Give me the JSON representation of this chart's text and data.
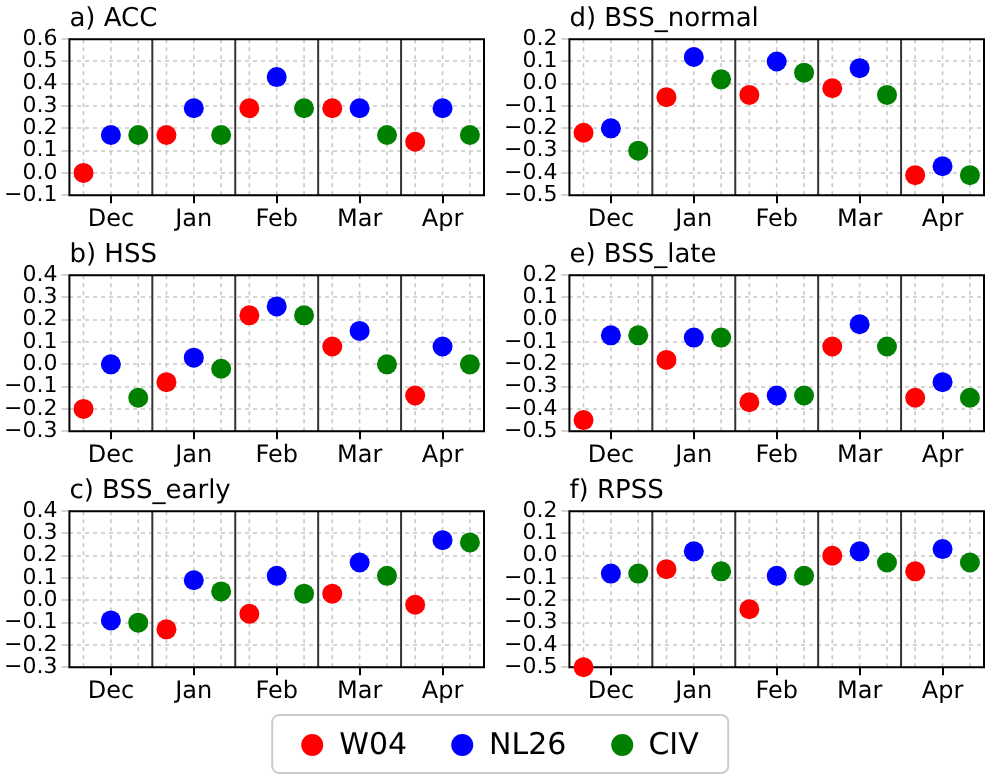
{
  "chart_data": [
    {
      "type": "scatter",
      "title": "a) ACC",
      "categories": [
        "Dec",
        "Jan",
        "Feb",
        "Mar",
        "Apr"
      ],
      "ylim": [
        -0.1,
        0.6
      ],
      "yticks": [
        {
          "value": -0.1,
          "label": "−0.1"
        },
        {
          "value": 0,
          "label": "0.0"
        },
        {
          "value": 0.1,
          "label": "0.1"
        },
        {
          "value": 0.2,
          "label": "0.2"
        },
        {
          "value": 0.3,
          "label": "0.3"
        },
        {
          "value": 0.4,
          "label": "0.4"
        },
        {
          "value": 0.5,
          "label": "0.5"
        },
        {
          "value": 0.6,
          "label": "0.6"
        }
      ],
      "grid": true,
      "marker": "circle",
      "series": [
        {
          "color": "#ff0000",
          "values": [
            0,
            0.17,
            0.29,
            0.29,
            0.14
          ]
        },
        {
          "color": "#0000ff",
          "values": [
            0.17,
            0.29,
            0.43,
            0.29,
            0.29
          ]
        },
        {
          "color": "#008000",
          "values": [
            0.17,
            0.17,
            0.29,
            0.17,
            0.17
          ]
        }
      ]
    },
    {
      "type": "scatter",
      "title": "d) BSS_normal",
      "categories": [
        "Dec",
        "Jan",
        "Feb",
        "Mar",
        "Apr"
      ],
      "ylim": [
        -0.5,
        0.2
      ],
      "yticks": [
        {
          "value": -0.5,
          "label": "−0.5"
        },
        {
          "value": -0.4,
          "label": "−0.4"
        },
        {
          "value": -0.3,
          "label": "−0.3"
        },
        {
          "value": -0.2,
          "label": "−0.2"
        },
        {
          "value": -0.1,
          "label": "−0.1"
        },
        {
          "value": 0,
          "label": "0.0"
        },
        {
          "value": 0.1,
          "label": "0.1"
        },
        {
          "value": 0.2,
          "label": "0.2"
        }
      ],
      "grid": true,
      "marker": "circle",
      "series": [
        {
          "color": "#ff0000",
          "values": [
            -0.22,
            -0.06,
            -0.05,
            -0.02,
            -0.41
          ]
        },
        {
          "color": "#0000ff",
          "values": [
            -0.2,
            0.12,
            0.1,
            0.07,
            -0.37
          ]
        },
        {
          "color": "#008000",
          "values": [
            -0.3,
            0.02,
            0.05,
            -0.05,
            -0.41
          ]
        }
      ]
    },
    {
      "type": "scatter",
      "title": "b) HSS",
      "categories": [
        "Dec",
        "Jan",
        "Feb",
        "Mar",
        "Apr"
      ],
      "ylim": [
        -0.3,
        0.4
      ],
      "yticks": [
        {
          "value": -0.3,
          "label": "−0.3"
        },
        {
          "value": -0.2,
          "label": "−0.2"
        },
        {
          "value": -0.1,
          "label": "−0.1"
        },
        {
          "value": 0,
          "label": "0.0"
        },
        {
          "value": 0.1,
          "label": "0.1"
        },
        {
          "value": 0.2,
          "label": "0.2"
        },
        {
          "value": 0.3,
          "label": "0.3"
        },
        {
          "value": 0.4,
          "label": "0.4"
        }
      ],
      "grid": true,
      "marker": "circle",
      "series": [
        {
          "color": "#ff0000",
          "values": [
            -0.2,
            -0.08,
            0.22,
            0.08,
            -0.14
          ]
        },
        {
          "color": "#0000ff",
          "values": [
            0,
            0.03,
            0.26,
            0.15,
            0.08
          ]
        },
        {
          "color": "#008000",
          "values": [
            -0.15,
            -0.02,
            0.22,
            0,
            0
          ]
        }
      ]
    },
    {
      "type": "scatter",
      "title": "e) BSS_late",
      "categories": [
        "Dec",
        "Jan",
        "Feb",
        "Mar",
        "Apr"
      ],
      "ylim": [
        -0.5,
        0.2
      ],
      "yticks": [
        {
          "value": -0.5,
          "label": "−0.5"
        },
        {
          "value": -0.4,
          "label": "−0.4"
        },
        {
          "value": -0.3,
          "label": "−0.3"
        },
        {
          "value": -0.2,
          "label": "−0.2"
        },
        {
          "value": -0.1,
          "label": "−0.1"
        },
        {
          "value": 0,
          "label": "0.0"
        },
        {
          "value": 0.1,
          "label": "0.1"
        },
        {
          "value": 0.2,
          "label": "0.2"
        }
      ],
      "grid": true,
      "marker": "circle",
      "series": [
        {
          "color": "#ff0000",
          "values": [
            -0.45,
            -0.18,
            -0.37,
            -0.12,
            -0.35
          ]
        },
        {
          "color": "#0000ff",
          "values": [
            -0.07,
            -0.08,
            -0.34,
            -0.02,
            -0.28
          ]
        },
        {
          "color": "#008000",
          "values": [
            -0.07,
            -0.08,
            -0.34,
            -0.12,
            -0.35
          ]
        }
      ]
    },
    {
      "type": "scatter",
      "title": "c) BSS_early",
      "categories": [
        "Dec",
        "Jan",
        "Feb",
        "Mar",
        "Apr"
      ],
      "ylim": [
        -0.3,
        0.4
      ],
      "yticks": [
        {
          "value": -0.3,
          "label": "−0.3"
        },
        {
          "value": -0.2,
          "label": "−0.2"
        },
        {
          "value": -0.1,
          "label": "−0.1"
        },
        {
          "value": 0,
          "label": "0.0"
        },
        {
          "value": 0.1,
          "label": "0.1"
        },
        {
          "value": 0.2,
          "label": "0.2"
        },
        {
          "value": 0.3,
          "label": "0.3"
        },
        {
          "value": 0.4,
          "label": "0.4"
        }
      ],
      "grid": true,
      "marker": "circle",
      "series": [
        {
          "color": "#ff0000",
          "values": [
            null,
            -0.13,
            -0.06,
            0.03,
            -0.02
          ]
        },
        {
          "color": "#0000ff",
          "values": [
            -0.09,
            0.09,
            0.11,
            0.17,
            0.27
          ]
        },
        {
          "color": "#008000",
          "values": [
            -0.1,
            0.04,
            0.03,
            0.11,
            0.26
          ]
        }
      ]
    },
    {
      "type": "scatter",
      "title": "f) RPSS",
      "categories": [
        "Dec",
        "Jan",
        "Feb",
        "Mar",
        "Apr"
      ],
      "ylim": [
        -0.5,
        0.2
      ],
      "yticks": [
        {
          "value": -0.5,
          "label": "−0.5"
        },
        {
          "value": -0.4,
          "label": "−0.4"
        },
        {
          "value": -0.3,
          "label": "−0.3"
        },
        {
          "value": -0.2,
          "label": "−0.2"
        },
        {
          "value": -0.1,
          "label": "−0.1"
        },
        {
          "value": 0,
          "label": "0.0"
        },
        {
          "value": 0.1,
          "label": "0.1"
        },
        {
          "value": 0.2,
          "label": "0.2"
        }
      ],
      "grid": true,
      "marker": "circle",
      "legend": "bottom",
      "series": [
        {
          "name": "W04",
          "color": "#ff0000",
          "values": [
            -0.5,
            -0.06,
            -0.24,
            0,
            -0.07
          ]
        },
        {
          "name": "NL26",
          "color": "#0000ff",
          "values": [
            -0.08,
            0.02,
            -0.09,
            0.02,
            0.03
          ]
        },
        {
          "name": "CIV",
          "color": "#008000",
          "values": [
            -0.08,
            -0.07,
            -0.09,
            -0.03,
            -0.03
          ]
        }
      ]
    }
  ]
}
